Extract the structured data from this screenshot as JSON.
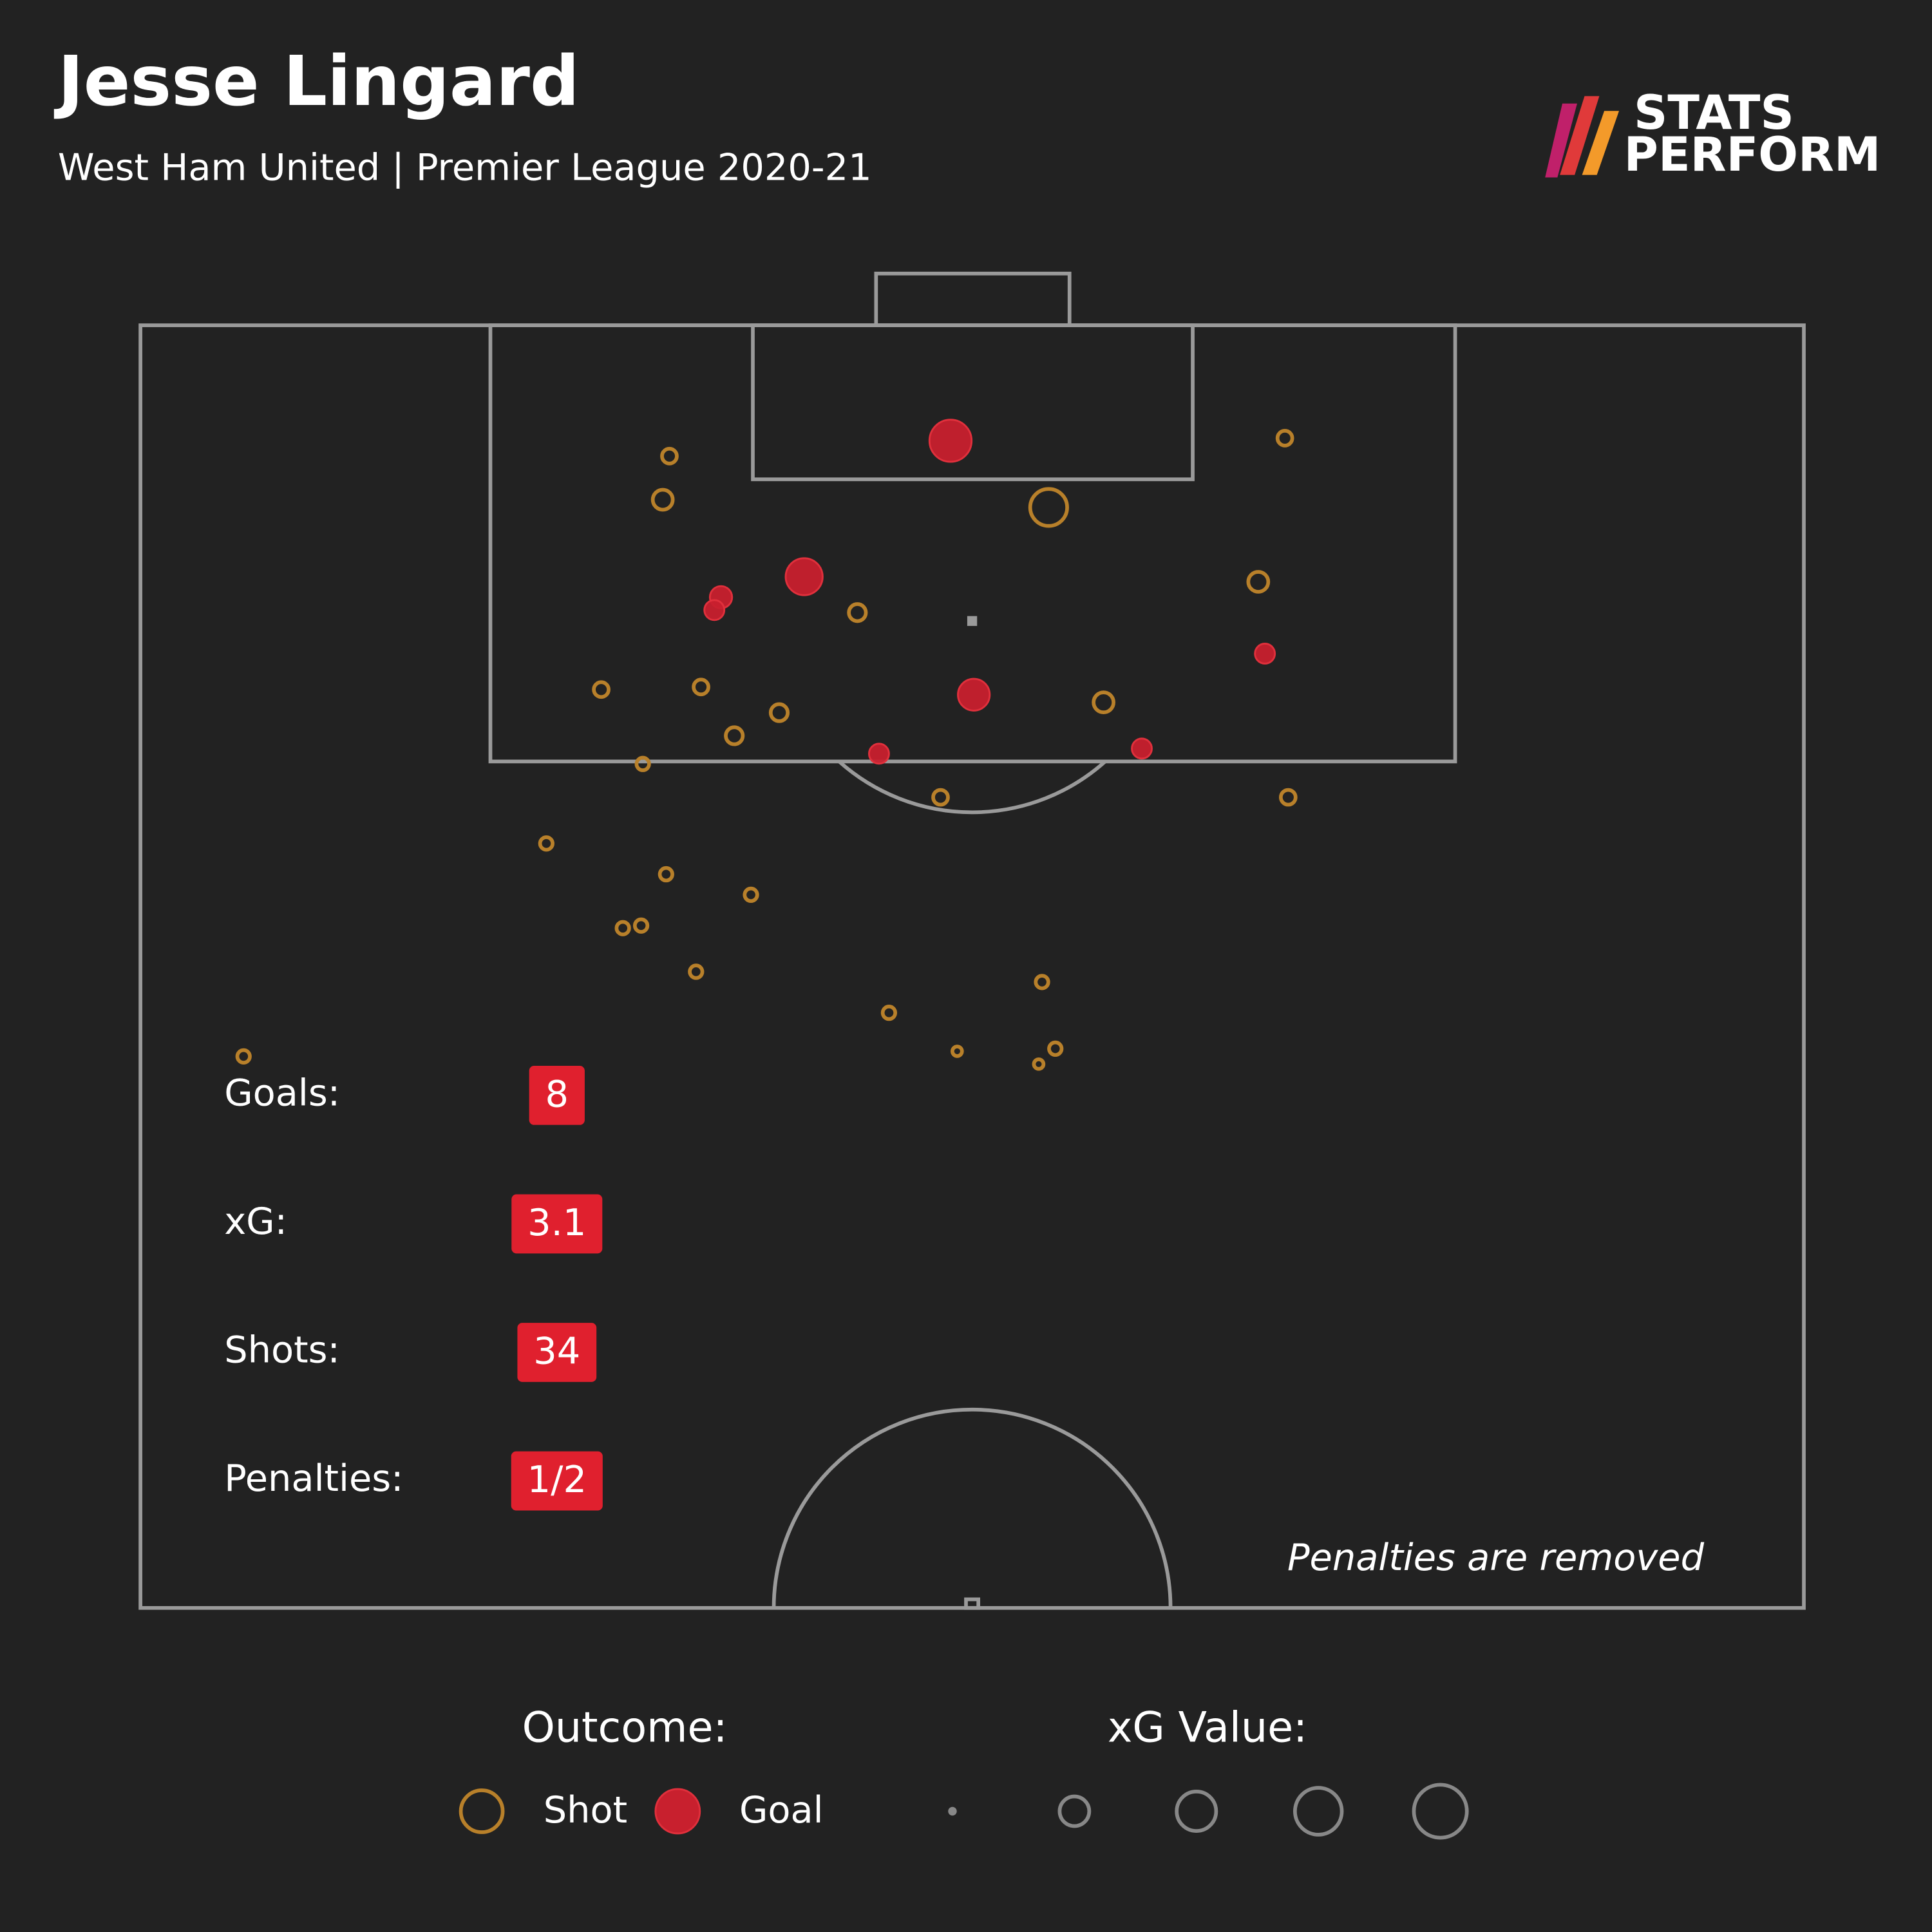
{
  "chart_data": {
    "type": "scatter",
    "title": "Jesse Lingard",
    "subtitle": "West Ham United | Premier League 2020-21",
    "logo": [
      "STATS",
      "PERFORM"
    ],
    "xlim": [
      0,
      100
    ],
    "ylim": [
      50,
      100
    ],
    "series": [
      {
        "name": "Shot",
        "color": "#b8802a",
        "x": [
          31.8,
          31.4,
          68.8,
          54.6,
          43.1,
          67.2,
          27.7,
          33.7,
          38.4,
          35.7,
          57.9,
          30.2,
          48.1,
          69.0,
          24.4,
          31.6,
          36.7,
          29.0,
          30.1,
          33.4,
          54.2,
          45.0,
          49.1,
          55.0,
          54.0,
          6.2
        ],
        "values": [
          94.9,
          93.2,
          95.6,
          92.9,
          88.8,
          90.0,
          85.8,
          85.9,
          84.9,
          84.0,
          85.3,
          82.9,
          81.6,
          81.6,
          79.8,
          78.6,
          77.8,
          76.5,
          76.6,
          74.8,
          74.4,
          73.2,
          71.7,
          71.8,
          71.2,
          71.5
        ],
        "sizes": [
          0.1,
          0.17,
          0.1,
          0.4,
          0.13,
          0.17,
          0.1,
          0.1,
          0.13,
          0.13,
          0.17,
          0.07,
          0.1,
          0.1,
          0.07,
          0.07,
          0.07,
          0.07,
          0.07,
          0.07,
          0.07,
          0.07,
          0.03,
          0.07,
          0.03,
          0.07
        ]
      },
      {
        "name": "Goal",
        "color": "#c8202e",
        "x": [
          48.7,
          39.9,
          34.9,
          34.5,
          50.1,
          44.4,
          60.2,
          67.6
        ],
        "values": [
          95.5,
          90.2,
          89.4,
          88.9,
          85.6,
          83.3,
          83.5,
          87.2
        ],
        "sizes": [
          0.47,
          0.4,
          0.2,
          0.17,
          0.33,
          0.17,
          0.17,
          0.17
        ]
      }
    ],
    "legend_title": "Outcome:",
    "size_legend_title": "xG Value:",
    "note": "Penalties are removed",
    "stats": [
      {
        "label": "Goals:",
        "value": 8
      },
      {
        "label": "xG:",
        "value": 3.1
      },
      {
        "label": "Shots:",
        "value": 34
      },
      {
        "label": "Penalties:",
        "value": "1/2"
      }
    ]
  }
}
